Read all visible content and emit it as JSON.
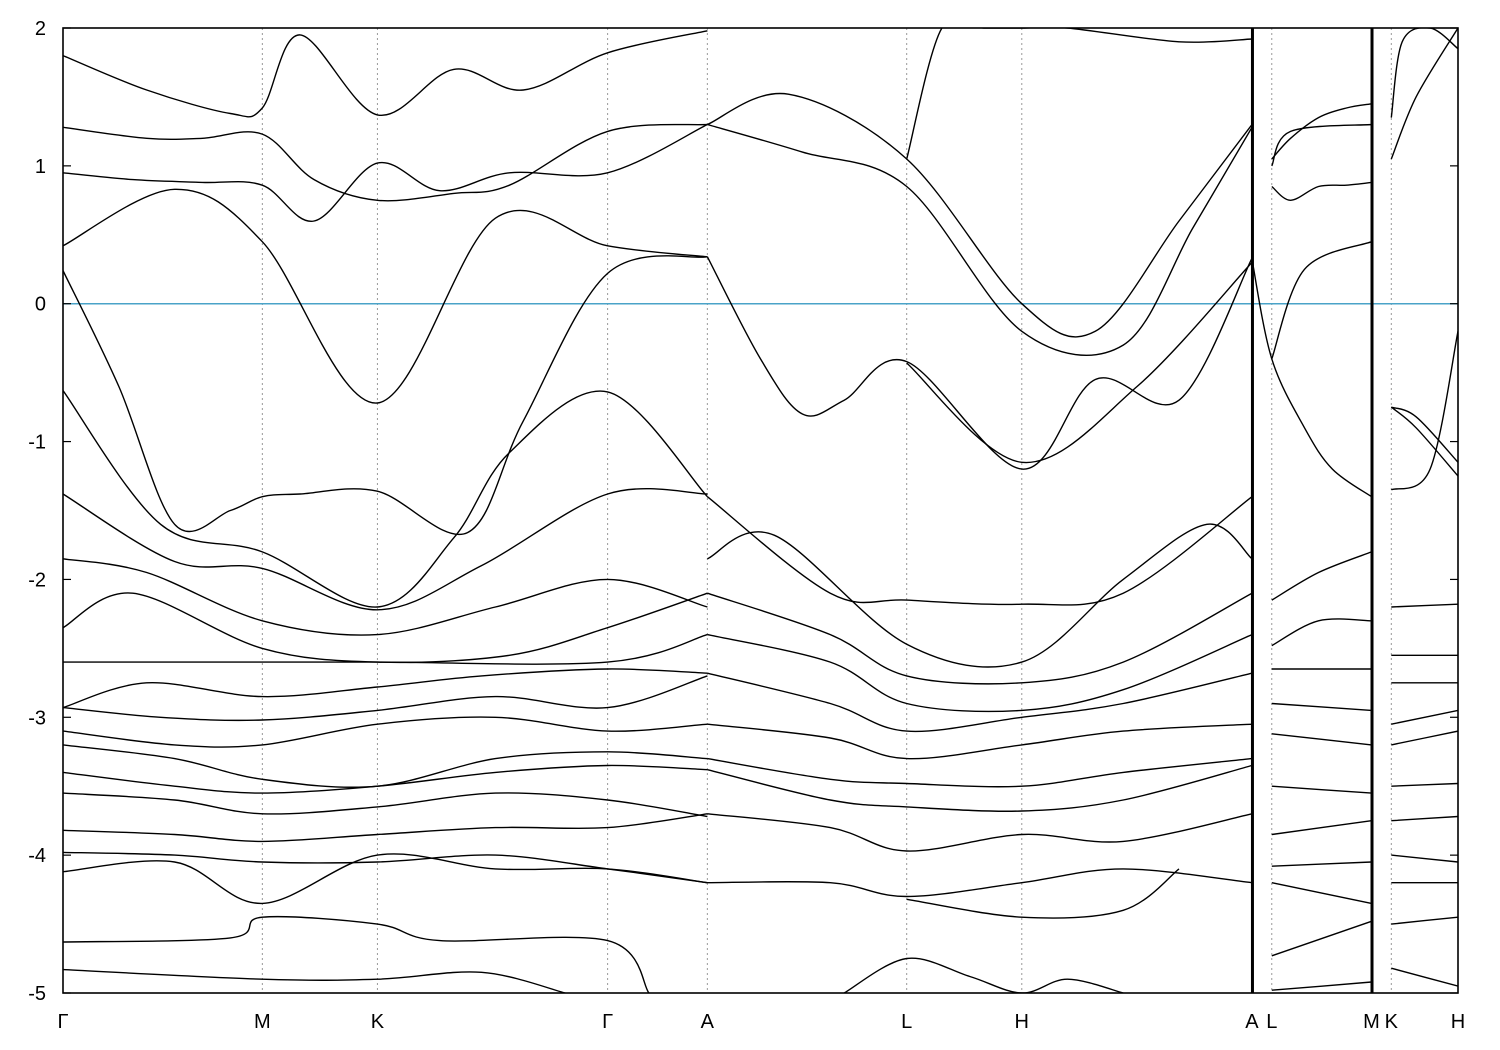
{
  "chart_data": {
    "type": "line",
    "title": "",
    "xlabel": "",
    "ylabel": "",
    "ylim": [
      -5,
      2
    ],
    "yticks": [
      2,
      1,
      0,
      -1,
      -2,
      -3,
      -4,
      -5
    ],
    "x_points": [
      {
        "label": "Γ",
        "x": 0.0
      },
      {
        "label": "M",
        "x": 1.429
      },
      {
        "label": "K",
        "x": 2.254
      },
      {
        "label": "Γ",
        "x": 3.904
      },
      {
        "label": "A",
        "x": 4.619
      },
      {
        "label": "L",
        "x": 6.048
      },
      {
        "label": "H",
        "x": 6.873
      },
      {
        "label": "A",
        "x": 8.523
      },
      {
        "label": "L",
        "x": 8.665
      },
      {
        "label": "M",
        "x": 9.38
      },
      {
        "label": "K",
        "x": 9.522
      },
      {
        "label": "H",
        "x": 10.0
      }
    ],
    "xlim": [
      0,
      10
    ],
    "breaks_at": [
      8.523,
      9.38
    ],
    "fermi_level": 0,
    "colors": {
      "bands": "#000000",
      "fermi": "#4aa3c8",
      "grid": "#999999"
    },
    "series": [
      {
        "x": [
          0,
          0.8,
          1.429,
          2.254,
          3.1,
          3.904,
          4.619
        ],
        "y": [
          0.42,
          0.83,
          0.45,
          -0.72,
          0.62,
          0.42,
          0.34
        ]
      },
      {
        "x": [
          0,
          0.4,
          0.8,
          1.2,
          1.429,
          1.7,
          2.254,
          2.9,
          3.3,
          3.904,
          4.619
        ],
        "y": [
          0.24,
          -0.6,
          -1.6,
          -1.5,
          -1.4,
          -1.38,
          -1.36,
          -1.66,
          -0.85,
          0.22,
          0.34
        ]
      },
      {
        "x": [
          0,
          0.5,
          1.0,
          1.429,
          1.8,
          2.254,
          2.7,
          3.2,
          3.904,
          4.619
        ],
        "y": [
          0.95,
          0.9,
          0.88,
          0.86,
          0.6,
          1.02,
          0.82,
          0.95,
          0.95,
          1.3
        ]
      },
      {
        "x": [
          0,
          0.6,
          1.0,
          1.429,
          1.8,
          2.254,
          2.8,
          3.2,
          3.904,
          4.619
        ],
        "y": [
          1.28,
          1.2,
          1.2,
          1.23,
          0.9,
          0.75,
          0.8,
          0.86,
          1.25,
          1.3
        ]
      },
      {
        "x": [
          0,
          0.6,
          1.2,
          1.429,
          1.7,
          2.254,
          2.8,
          3.3,
          3.904,
          4.619
        ],
        "y": [
          1.8,
          1.55,
          1.38,
          1.42,
          1.95,
          1.37,
          1.7,
          1.55,
          1.82,
          1.98
        ]
      },
      {
        "x": [
          0,
          0.7,
          1.429,
          2.254,
          2.8,
          3.2,
          3.904,
          4.619
        ],
        "y": [
          -0.63,
          -1.6,
          -1.8,
          -2.2,
          -1.7,
          -1.08,
          -0.64,
          -1.4
        ]
      },
      {
        "x": [
          0,
          0.8,
          1.429,
          2.254,
          3.0,
          3.904,
          4.619
        ],
        "y": [
          -1.38,
          -1.87,
          -1.92,
          -2.22,
          -1.9,
          -1.38,
          -1.38
        ]
      },
      {
        "x": [
          0,
          0.6,
          1.429,
          2.254,
          3.1,
          3.904,
          4.619
        ],
        "y": [
          -1.85,
          -1.95,
          -2.3,
          -2.4,
          -2.2,
          -2.0,
          -2.2
        ]
      },
      {
        "x": [
          0,
          0.5,
          1.429,
          2.254,
          3.2,
          3.904,
          4.619
        ],
        "y": [
          -2.35,
          -2.1,
          -2.5,
          -2.6,
          -2.55,
          -2.35,
          -2.1
        ]
      },
      {
        "x": [
          0,
          1.429,
          2.254,
          3.904,
          4.619
        ],
        "y": [
          -2.6,
          -2.6,
          -2.6,
          -2.6,
          -2.4
        ]
      },
      {
        "x": [
          0,
          0.6,
          1.429,
          2.254,
          3.0,
          3.904,
          4.619
        ],
        "y": [
          -2.93,
          -2.75,
          -2.85,
          -2.78,
          -2.7,
          -2.65,
          -2.68
        ]
      },
      {
        "x": [
          0,
          0.7,
          1.429,
          2.254,
          3.1,
          3.904,
          4.619
        ],
        "y": [
          -2.93,
          -3.0,
          -3.02,
          -2.95,
          -2.85,
          -2.93,
          -2.7
        ]
      },
      {
        "x": [
          0,
          0.8,
          1.429,
          2.254,
          3.1,
          3.904,
          4.619
        ],
        "y": [
          -3.1,
          -3.2,
          -3.2,
          -3.05,
          -3.0,
          -3.1,
          -3.05
        ]
      },
      {
        "x": [
          0,
          0.8,
          1.429,
          2.254,
          3.1,
          3.904,
          4.619
        ],
        "y": [
          -3.2,
          -3.3,
          -3.45,
          -3.5,
          -3.3,
          -3.25,
          -3.3
        ]
      },
      {
        "x": [
          0,
          0.8,
          1.429,
          2.254,
          3.1,
          3.904,
          4.619
        ],
        "y": [
          -3.4,
          -3.5,
          -3.55,
          -3.5,
          -3.4,
          -3.35,
          -3.38
        ]
      },
      {
        "x": [
          0,
          0.8,
          1.429,
          2.254,
          3.1,
          3.904,
          4.619
        ],
        "y": [
          -3.55,
          -3.6,
          -3.7,
          -3.65,
          -3.55,
          -3.6,
          -3.72
        ]
      },
      {
        "x": [
          0,
          0.8,
          1.429,
          2.254,
          3.1,
          3.904,
          4.619
        ],
        "y": [
          -3.82,
          -3.85,
          -3.9,
          -3.85,
          -3.8,
          -3.8,
          -3.7
        ]
      },
      {
        "x": [
          0,
          0.8,
          1.429,
          2.254,
          3.1,
          3.904,
          4.619
        ],
        "y": [
          -3.98,
          -4.0,
          -4.05,
          -4.05,
          -4.0,
          -4.1,
          -4.2
        ]
      },
      {
        "x": [
          0,
          0.8,
          1.429,
          2.254,
          3.1,
          3.904,
          4.619
        ],
        "y": [
          -4.12,
          -4.05,
          -4.35,
          -4.0,
          -4.1,
          -4.1,
          -4.2
        ]
      },
      {
        "x": [
          0,
          1.2,
          1.429,
          2.254,
          2.7,
          3.904,
          4.2
        ],
        "y": [
          -4.63,
          -4.6,
          -4.45,
          -4.5,
          -4.62,
          -4.62,
          -5.0
        ]
      },
      {
        "x": [
          0,
          1.429,
          2.254,
          3.0,
          3.6
        ],
        "y": [
          -4.83,
          -4.9,
          -4.9,
          -4.85,
          -5.0
        ]
      },
      {
        "x": [
          4.619,
          5.2,
          6.048,
          6.873,
          7.4,
          8.0,
          8.523
        ],
        "y": [
          1.3,
          1.52,
          1.05,
          0.0,
          -0.2,
          0.6,
          1.3
        ]
      },
      {
        "x": [
          4.619,
          5.3,
          6.048,
          6.873,
          7.6,
          8.1,
          8.523
        ],
        "y": [
          1.3,
          1.1,
          0.85,
          -0.2,
          -0.3,
          0.55,
          1.28
        ]
      },
      {
        "x": [
          4.619,
          5.0,
          5.3,
          5.6,
          6.048,
          6.873,
          7.4,
          8.0,
          8.523
        ],
        "y": [
          0.34,
          -0.4,
          -0.8,
          -0.7,
          -0.42,
          -1.2,
          -0.55,
          -0.7,
          0.33
        ]
      },
      {
        "x": [
          6.048,
          6.873,
          7.7,
          8.523
        ],
        "y": [
          -0.43,
          -1.15,
          -0.6,
          0.3
        ]
      },
      {
        "x": [
          6.048,
          6.3,
          6.6,
          6.873,
          7.2,
          8.0,
          8.523
        ],
        "y": [
          1.05,
          2.0,
          2.0,
          2.0,
          2.0,
          1.9,
          1.92
        ]
      },
      {
        "x": [
          4.619,
          5.5,
          6.048,
          6.873,
          7.6,
          8.523
        ],
        "y": [
          -1.4,
          -2.1,
          -2.15,
          -2.18,
          -2.1,
          -1.4
        ]
      },
      {
        "x": [
          4.619,
          5.1,
          6.048,
          6.873,
          7.6,
          8.2,
          8.523
        ],
        "y": [
          -1.85,
          -1.68,
          -2.47,
          -2.6,
          -2.0,
          -1.6,
          -1.85
        ]
      },
      {
        "x": [
          4.619,
          5.5,
          6.048,
          6.873,
          7.6,
          8.523
        ],
        "y": [
          -2.1,
          -2.4,
          -2.7,
          -2.75,
          -2.6,
          -2.1
        ]
      },
      {
        "x": [
          4.619,
          5.5,
          6.048,
          6.873,
          7.6,
          8.523
        ],
        "y": [
          -2.4,
          -2.6,
          -2.9,
          -2.95,
          -2.8,
          -2.4
        ]
      },
      {
        "x": [
          4.619,
          5.5,
          6.048,
          6.873,
          7.6,
          8.523
        ],
        "y": [
          -2.68,
          -2.9,
          -3.1,
          -3.0,
          -2.9,
          -2.68
        ]
      },
      {
        "x": [
          4.619,
          5.5,
          6.048,
          6.873,
          7.6,
          8.523
        ],
        "y": [
          -3.05,
          -3.15,
          -3.3,
          -3.2,
          -3.1,
          -3.05
        ]
      },
      {
        "x": [
          4.619,
          5.5,
          6.048,
          6.873,
          7.6,
          8.523
        ],
        "y": [
          -3.3,
          -3.45,
          -3.48,
          -3.5,
          -3.4,
          -3.3
        ]
      },
      {
        "x": [
          4.619,
          5.5,
          6.048,
          6.873,
          7.6,
          8.523
        ],
        "y": [
          -3.38,
          -3.6,
          -3.65,
          -3.68,
          -3.6,
          -3.35
        ]
      },
      {
        "x": [
          4.619,
          5.5,
          6.048,
          6.873,
          7.6,
          8.523
        ],
        "y": [
          -3.7,
          -3.8,
          -3.97,
          -3.85,
          -3.9,
          -3.7
        ]
      },
      {
        "x": [
          4.619,
          5.5,
          6.048,
          6.873,
          7.6,
          8.523
        ],
        "y": [
          -4.2,
          -4.2,
          -4.3,
          -4.2,
          -4.1,
          -4.2
        ]
      },
      {
        "x": [
          6.048,
          6.873,
          7.6,
          8.0
        ],
        "y": [
          -4.32,
          -4.45,
          -4.4,
          -4.1
        ]
      },
      {
        "x": [
          5.6,
          6.048,
          6.5,
          6.873,
          7.2,
          7.6
        ],
        "y": [
          -5.0,
          -4.75,
          -4.88,
          -5.0,
          -4.9,
          -5.0
        ]
      },
      {
        "x": [
          8.523,
          8.665,
          8.9,
          9.1,
          9.38
        ],
        "y": [
          0.32,
          -0.4,
          -0.9,
          -1.2,
          -1.4
        ]
      },
      {
        "x": [
          8.665,
          8.9,
          9.38
        ],
        "y": [
          -0.4,
          0.25,
          0.45
        ]
      },
      {
        "x": [
          8.665,
          8.8,
          9.0,
          9.2,
          9.38
        ],
        "y": [
          1.05,
          1.2,
          1.35,
          1.42,
          1.45
        ]
      },
      {
        "x": [
          8.665,
          8.8,
          9.0,
          9.2,
          9.38
        ],
        "y": [
          0.85,
          0.75,
          0.85,
          0.86,
          0.88
        ]
      },
      {
        "x": [
          8.665,
          8.8,
          9.38
        ],
        "y": [
          1.0,
          1.25,
          1.3
        ]
      },
      {
        "x": [
          8.665,
          9.0,
          9.38
        ],
        "y": [
          -2.15,
          -1.95,
          -1.8
        ]
      },
      {
        "x": [
          8.665,
          9.0,
          9.38
        ],
        "y": [
          -2.48,
          -2.3,
          -2.3
        ]
      },
      {
        "x": [
          8.665,
          9.38
        ],
        "y": [
          -2.65,
          -2.65
        ]
      },
      {
        "x": [
          8.665,
          9.38
        ],
        "y": [
          -2.9,
          -2.95
        ]
      },
      {
        "x": [
          8.665,
          9.38
        ],
        "y": [
          -3.12,
          -3.2
        ]
      },
      {
        "x": [
          8.665,
          9.38
        ],
        "y": [
          -3.5,
          -3.55
        ]
      },
      {
        "x": [
          8.665,
          9.38
        ],
        "y": [
          -3.85,
          -3.75
        ]
      },
      {
        "x": [
          8.665,
          9.38
        ],
        "y": [
          -4.08,
          -4.05
        ]
      },
      {
        "x": [
          8.665,
          9.38
        ],
        "y": [
          -4.2,
          -4.35
        ]
      },
      {
        "x": [
          8.665,
          9.38
        ],
        "y": [
          -4.73,
          -4.48
        ]
      },
      {
        "x": [
          8.665,
          9.38
        ],
        "y": [
          -4.98,
          -4.92
        ]
      },
      {
        "x": [
          9.522,
          9.7,
          10.0
        ],
        "y": [
          -0.75,
          -0.82,
          -1.15
        ]
      },
      {
        "x": [
          9.522,
          9.7,
          10.0
        ],
        "y": [
          -0.75,
          -0.9,
          -1.25
        ]
      },
      {
        "x": [
          9.522,
          9.6,
          9.8,
          10.0
        ],
        "y": [
          1.35,
          1.9,
          2.0,
          1.85
        ]
      },
      {
        "x": [
          9.522,
          9.7,
          10.0
        ],
        "y": [
          1.05,
          1.5,
          2.0
        ]
      },
      {
        "x": [
          9.522,
          9.8,
          10.0
        ],
        "y": [
          -1.35,
          -1.2,
          -0.2
        ]
      },
      {
        "x": [
          9.522,
          10.0
        ],
        "y": [
          -2.2,
          -2.18
        ]
      },
      {
        "x": [
          9.522,
          10.0
        ],
        "y": [
          -2.55,
          -2.55
        ]
      },
      {
        "x": [
          9.522,
          10.0
        ],
        "y": [
          -2.75,
          -2.75
        ]
      },
      {
        "x": [
          9.522,
          10.0
        ],
        "y": [
          -3.05,
          -2.95
        ]
      },
      {
        "x": [
          9.522,
          10.0
        ],
        "y": [
          -3.2,
          -3.1
        ]
      },
      {
        "x": [
          9.522,
          10.0
        ],
        "y": [
          -3.5,
          -3.48
        ]
      },
      {
        "x": [
          9.522,
          10.0
        ],
        "y": [
          -3.75,
          -3.72
        ]
      },
      {
        "x": [
          9.522,
          10.0
        ],
        "y": [
          -4.0,
          -4.05
        ]
      },
      {
        "x": [
          9.522,
          10.0
        ],
        "y": [
          -4.2,
          -4.2
        ]
      },
      {
        "x": [
          9.522,
          10.0
        ],
        "y": [
          -4.5,
          -4.45
        ]
      },
      {
        "x": [
          9.522,
          10.0
        ],
        "y": [
          -4.82,
          -4.95
        ]
      }
    ]
  }
}
